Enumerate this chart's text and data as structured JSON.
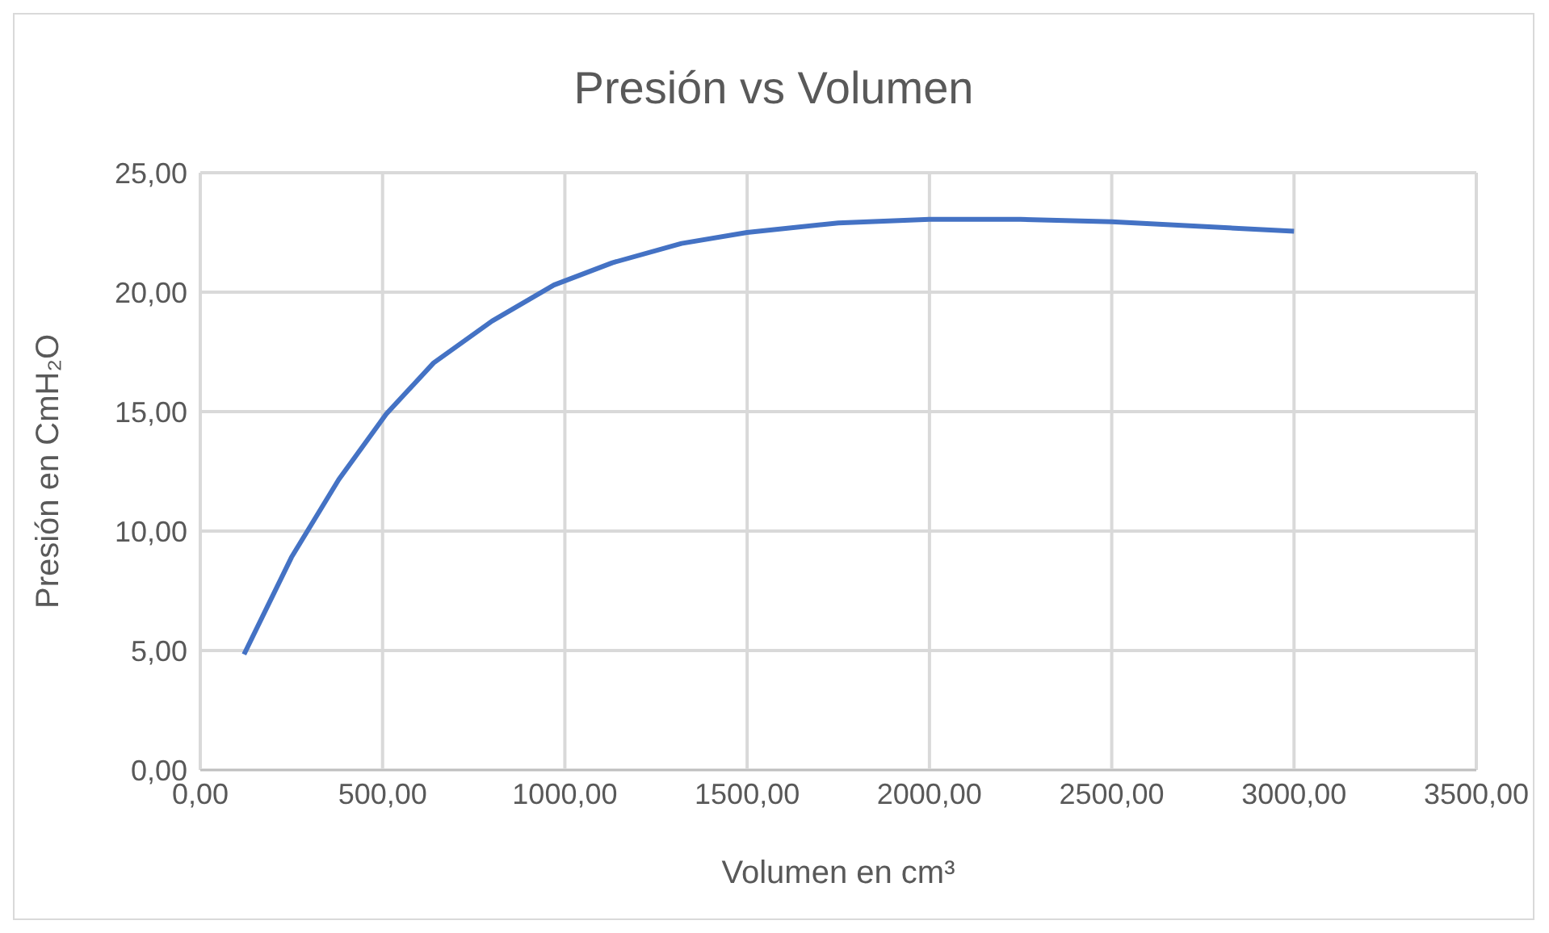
{
  "chart_data": {
    "type": "line",
    "title": "Presión vs Volumen",
    "xlabel": "Volumen en cm³",
    "ylabel": "Presión en CmH₂O",
    "x": [
      120,
      250,
      380,
      510,
      640,
      800,
      970,
      1130,
      1320,
      1500,
      1750,
      2000,
      2250,
      2500,
      3000
    ],
    "series": [
      {
        "color": "#4472c4",
        "values": [
          4.84,
          8.9,
          12.16,
          14.9,
          17.04,
          18.79,
          20.3,
          21.23,
          22.04,
          22.5,
          22.9,
          23.05,
          23.05,
          22.95,
          22.55
        ]
      }
    ],
    "xlim": [
      0,
      3500
    ],
    "xticks": [
      {
        "value": 0,
        "label": "0,00"
      },
      {
        "value": 500,
        "label": "500,00"
      },
      {
        "value": 1000,
        "label": "1000,00"
      },
      {
        "value": 1500,
        "label": "1500,00"
      },
      {
        "value": 2000,
        "label": "2000,00"
      },
      {
        "value": 2500,
        "label": "2500,00"
      },
      {
        "value": 3000,
        "label": "3000,00"
      },
      {
        "value": 3500,
        "label": "3500,00"
      }
    ],
    "ylim": [
      0,
      25
    ],
    "yticks": [
      {
        "value": 0,
        "label": "0,00"
      },
      {
        "value": 5,
        "label": "5,00"
      },
      {
        "value": 10,
        "label": "10,00"
      },
      {
        "value": 15,
        "label": "15,00"
      },
      {
        "value": 20,
        "label": "20,00"
      },
      {
        "value": 25,
        "label": "25,00"
      }
    ],
    "grid": true,
    "legend": false,
    "marker": "none",
    "line_style": "solid"
  }
}
